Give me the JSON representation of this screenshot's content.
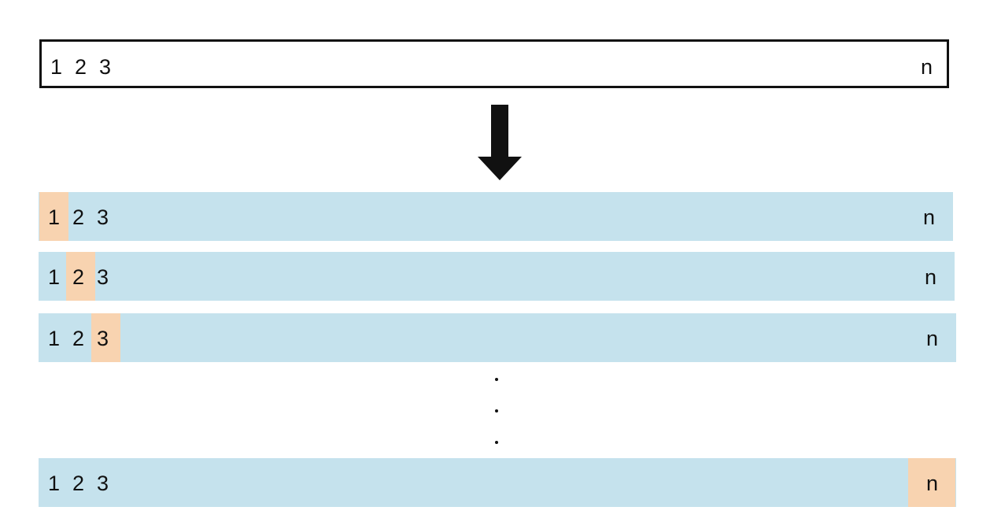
{
  "colors": {
    "row_fill": "#c5e2ed",
    "highlight_fill": "#f8d3b0",
    "border": "#111111"
  },
  "sequence": {
    "tokens": [
      "1",
      "2",
      "3",
      "n"
    ]
  },
  "rows": [
    {
      "tokens": [
        "1",
        "2",
        "3",
        "n"
      ],
      "highlighted": "1"
    },
    {
      "tokens": [
        "1",
        "2",
        "3",
        "n"
      ],
      "highlighted": "2"
    },
    {
      "tokens": [
        "1",
        "2",
        "3",
        "n"
      ],
      "highlighted": "3"
    },
    {
      "tokens": [
        "1",
        "2",
        "3",
        "n"
      ],
      "highlighted": "n"
    }
  ],
  "ellipsis": [
    ".",
    ".",
    "."
  ]
}
